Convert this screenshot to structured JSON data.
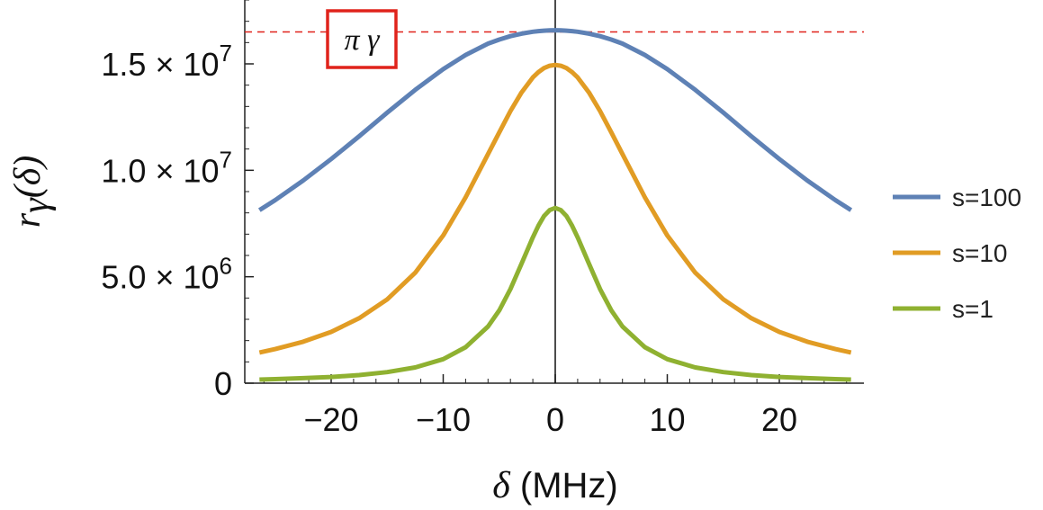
{
  "chart_data": {
    "type": "line",
    "xlabel": "δ (MHz)",
    "xlabel_symbol": "δ",
    "xlabel_unit": "(MHz)",
    "ylabel": "rγ(δ)",
    "xlim": [
      -27,
      27
    ],
    "ylim": [
      0,
      18000000.0
    ],
    "x_ticks": [
      {
        "value": -20,
        "label": "−20"
      },
      {
        "value": -10,
        "label": "−10"
      },
      {
        "value": 0,
        "label": "0"
      },
      {
        "value": 10,
        "label": "10"
      },
      {
        "value": 20,
        "label": "20"
      }
    ],
    "y_ticks": [
      {
        "value": 0,
        "label": "0",
        "exp": ""
      },
      {
        "value": 5000000,
        "label": "5.0 × 10",
        "exp": "6"
      },
      {
        "value": 10000000,
        "label": "1.0 × 10",
        "exp": "7"
      },
      {
        "value": 15000000,
        "label": "1.5 × 10",
        "exp": "7"
      }
    ],
    "x": [
      -26.4,
      -25,
      -22.5,
      -20,
      -17.5,
      -15,
      -12.5,
      -10,
      -8,
      -6,
      -5,
      -4,
      -3,
      -2,
      -1.5,
      -1,
      -0.5,
      0,
      0.5,
      1,
      1.5,
      2,
      3,
      4,
      5,
      6,
      8,
      10,
      12.5,
      15,
      17.5,
      20,
      22.5,
      25,
      26.4
    ],
    "series": [
      {
        "name": "s=100",
        "color": "#5E81B5",
        "values": [
          8130000,
          8600000,
          9520000,
          10530000,
          11600000,
          12710000,
          13780000,
          14750000,
          15420000,
          15950000,
          16140000,
          16300000,
          16420000,
          16510000,
          16540000,
          16560000,
          16570000,
          16580000,
          16570000,
          16560000,
          16540000,
          16510000,
          16420000,
          16300000,
          16140000,
          15950000,
          15420000,
          14750000,
          13780000,
          12710000,
          11600000,
          10530000,
          9520000,
          8600000,
          8130000
        ]
      },
      {
        "name": "s=10",
        "color": "#E19C24",
        "values": [
          1440000,
          1600000,
          1950000,
          2410000,
          3050000,
          3940000,
          5190000,
          6940000,
          8730000,
          10760000,
          11780000,
          12780000,
          13660000,
          14360000,
          14610000,
          14800000,
          14910000,
          14950000,
          14910000,
          14800000,
          14610000,
          14360000,
          13660000,
          12780000,
          11780000,
          10760000,
          8730000,
          6940000,
          5190000,
          3940000,
          3050000,
          2410000,
          1950000,
          1600000,
          1440000
        ]
      },
      {
        "name": "s=1",
        "color": "#8FB131",
        "values": [
          170000,
          190000,
          235000,
          290000,
          380000,
          520000,
          740000,
          1130000,
          1690000,
          2660000,
          3420000,
          4420000,
          5620000,
          6850000,
          7400000,
          7850000,
          8130000,
          8230000,
          8130000,
          7850000,
          7400000,
          6850000,
          5620000,
          4420000,
          3420000,
          2660000,
          1690000,
          1130000,
          740000,
          520000,
          380000,
          290000,
          235000,
          190000,
          170000
        ]
      }
    ],
    "reference_line": {
      "label": "π γ",
      "value": 16500000,
      "color": "#E0231B",
      "style": "dashed"
    },
    "legend_position": "right",
    "grid": false
  }
}
